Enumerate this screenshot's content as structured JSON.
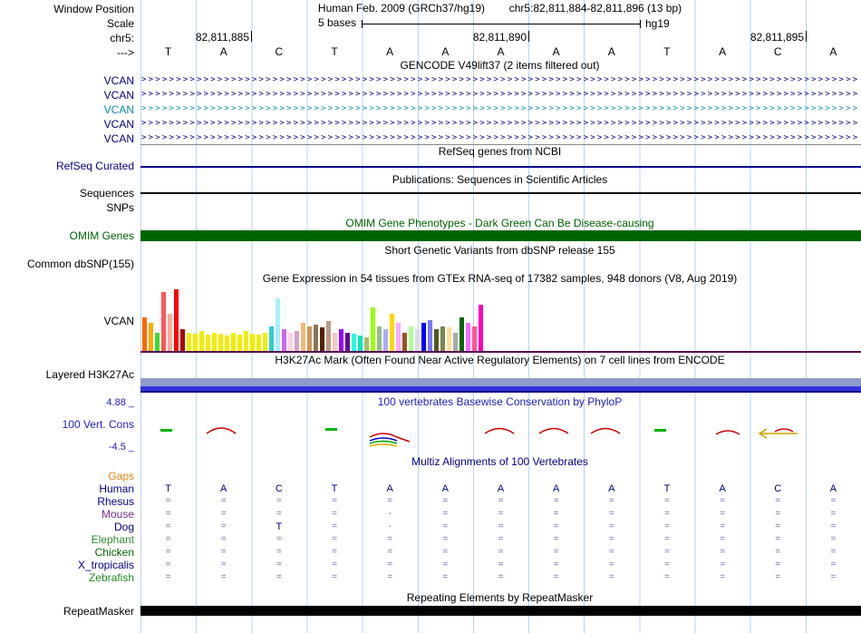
{
  "header": {
    "assembly": "Human Feb. 2009 (GRCh37/hg19)",
    "position": "chr5:82,811,884-82,811,896 (13 bp)"
  },
  "labels": {
    "window_position": "Window Position",
    "scale": "Scale",
    "chr": "chr5:",
    "strand": "--->"
  },
  "scale": {
    "text": "5 bases",
    "genome": "hg19"
  },
  "ruler": {
    "coords": [
      "82,811,885",
      "82,811,890",
      "82,811,895"
    ],
    "bases": [
      "T",
      "A",
      "C",
      "T",
      "A",
      "A",
      "A",
      "A",
      "A",
      "T",
      "A",
      "C",
      "A"
    ]
  },
  "tracks": {
    "gencode": {
      "title": "GENCODE V49lift37 (2 items filtered out)",
      "items": [
        {
          "label": "VCAN",
          "color": "#000080"
        },
        {
          "label": "VCAN",
          "color": "#000080"
        },
        {
          "label": "VCAN",
          "color": "#0E8CA8"
        },
        {
          "label": "VCAN",
          "color": "#000080"
        },
        {
          "label": "VCAN",
          "color": "#000080"
        }
      ]
    },
    "refseq": {
      "title": "RefSeq genes from NCBI",
      "label": "RefSeq Curated",
      "color": "#00008B"
    },
    "publications": {
      "title": "Publications: Sequences in Scientific Articles",
      "label": "Sequences"
    },
    "snps": {
      "label": "SNPs"
    },
    "omim": {
      "title": "OMIM Gene Phenotypes - Dark Green Can Be Disease-causing",
      "label": "OMIM Genes",
      "color": "#006400"
    },
    "dbsnp": {
      "title": "Short Genetic Variants from dbSNP release 155",
      "label": "Common dbSNP(155)"
    },
    "gtex": {
      "title": "Gene Expression in 54 tissues from GTEx RNA-seq of 17382 samples, 948 donors (V8, Aug 2019)",
      "label": "VCAN",
      "baseline_color": "#550A55",
      "bars": [
        {
          "color": "#FF6600",
          "h": 0.55
        },
        {
          "color": "#FFAA00",
          "h": 0.45
        },
        {
          "color": "#33DD33",
          "h": 0.3
        },
        {
          "color": "#FF5555",
          "h": 0.95
        },
        {
          "color": "#FFAA99",
          "h": 0.6
        },
        {
          "color": "#FF0000",
          "h": 1.0
        },
        {
          "color": "#AA0000",
          "h": 0.35
        },
        {
          "color": "#EEEE00",
          "h": 0.3
        },
        {
          "color": "#EEEE00",
          "h": 0.28
        },
        {
          "color": "#EEEE00",
          "h": 0.32
        },
        {
          "color": "#EEEE00",
          "h": 0.26
        },
        {
          "color": "#EEEE00",
          "h": 0.3
        },
        {
          "color": "#EEEE00",
          "h": 0.28
        },
        {
          "color": "#EEEE00",
          "h": 0.25
        },
        {
          "color": "#EEEE00",
          "h": 0.3
        },
        {
          "color": "#EEEE00",
          "h": 0.27
        },
        {
          "color": "#EEEE00",
          "h": 0.32
        },
        {
          "color": "#EEEE00",
          "h": 0.28
        },
        {
          "color": "#EEEE00",
          "h": 0.26
        },
        {
          "color": "#EEEE00",
          "h": 0.3
        },
        {
          "color": "#33CCCC",
          "h": 0.4
        },
        {
          "color": "#AAEEFF",
          "h": 0.85
        },
        {
          "color": "#CC66FF",
          "h": 0.35
        },
        {
          "color": "#FFD1DC",
          "h": 0.3
        },
        {
          "color": "#D1A3C4",
          "h": 0.32
        },
        {
          "color": "#EEBB77",
          "h": 0.45
        },
        {
          "color": "#CC9955",
          "h": 0.4
        },
        {
          "color": "#8B7355",
          "h": 0.42
        },
        {
          "color": "#552200",
          "h": 0.38
        },
        {
          "color": "#BB9988",
          "h": 0.48
        },
        {
          "color": "#F1C6C6",
          "h": 0.3
        },
        {
          "color": "#9900FF",
          "h": 0.35
        },
        {
          "color": "#660099",
          "h": 0.3
        },
        {
          "color": "#22FFDD",
          "h": 0.28
        },
        {
          "color": "#00E5C0",
          "h": 0.25
        },
        {
          "color": "#AABB66",
          "h": 0.22
        },
        {
          "color": "#99FF00",
          "h": 0.7
        },
        {
          "color": "#99BB88",
          "h": 0.4
        },
        {
          "color": "#AAAAFF",
          "h": 0.35
        },
        {
          "color": "#FFD700",
          "h": 0.6
        },
        {
          "color": "#FFAAFF",
          "h": 0.45
        },
        {
          "color": "#995522",
          "h": 0.3
        },
        {
          "color": "#AAFF99",
          "h": 0.4
        },
        {
          "color": "#DDDDDD",
          "h": 0.35
        },
        {
          "color": "#0000FF",
          "h": 0.45
        },
        {
          "color": "#7777FF",
          "h": 0.5
        },
        {
          "color": "#555522",
          "h": 0.35
        },
        {
          "color": "#778855",
          "h": 0.4
        },
        {
          "color": "#FFDD99",
          "h": 0.38
        },
        {
          "color": "#AAAAAA",
          "h": 0.3
        },
        {
          "color": "#006600",
          "h": 0.55
        },
        {
          "color": "#FF66FF",
          "h": 0.45
        },
        {
          "color": "#FF5599",
          "h": 0.4
        },
        {
          "color": "#FF00BB",
          "h": 0.75
        }
      ]
    },
    "h3k27ac": {
      "title": "H3K27Ac Mark (Often Found Near Active Regulatory Elements) on 7 cell lines from ENCODE",
      "label": "Layered H3K27Ac",
      "band_colors": [
        "#8E9CCB",
        "#2E34D8",
        "#10128F"
      ]
    },
    "phylop": {
      "title": "100 vertebrates Basewise Conservation by PhyloP",
      "label": "100 Vert. Cons",
      "max": "4.88 _",
      "min": "-4.5 _",
      "color": "#2020C8"
    },
    "multiz": {
      "title": "Multiz Alignments of 100 Vertebrates",
      "color": "#00008B",
      "rows": [
        {
          "name": "Gaps",
          "color": "#E8820C",
          "cells": [
            "",
            "",
            "",
            "",
            "",
            "",
            "",
            "",
            "",
            "",
            "",
            "",
            ""
          ]
        },
        {
          "name": "Human",
          "color": "#00008B",
          "cells": [
            "T",
            "A",
            "C",
            "T",
            "A",
            "A",
            "A",
            "A",
            "A",
            "T",
            "A",
            "C",
            "A"
          ]
        },
        {
          "name": "Rhesus",
          "color": "#00008B",
          "cells": [
            "=",
            "=",
            "=",
            "=",
            "=",
            "=",
            "=",
            "=",
            "=",
            "=",
            "=",
            "=",
            "="
          ]
        },
        {
          "name": "Mouse",
          "color": "#7A2E8E",
          "cells": [
            "=",
            "=",
            "=",
            "=",
            "-",
            "=",
            "=",
            "=",
            "=",
            "=",
            "=",
            "=",
            "="
          ]
        },
        {
          "name": "Dog",
          "color": "#00008B",
          "cells": [
            "=",
            "=",
            "T",
            "=",
            "-",
            "=",
            "=",
            "=",
            "=",
            "=",
            "=",
            "=",
            "="
          ]
        },
        {
          "name": "Elephant",
          "color": "#2E8B2E",
          "cells": [
            "=",
            "=",
            "=",
            "=",
            "=",
            "=",
            "=",
            "=",
            "=",
            "=",
            "=",
            "=",
            "="
          ]
        },
        {
          "name": "Chicken",
          "color": "#006400",
          "cells": [
            "=",
            "=",
            "=",
            "=",
            "=",
            "=",
            "=",
            "=",
            "=",
            "=",
            "=",
            "=",
            "="
          ]
        },
        {
          "name": "X_tropicalis",
          "color": "#00008B",
          "cells": [
            "=",
            "=",
            "=",
            "=",
            "=",
            "=",
            "=",
            "=",
            "=",
            "=",
            "=",
            "=",
            "="
          ]
        },
        {
          "name": "Zebrafish",
          "color": "#228B22",
          "cells": [
            "=",
            "=",
            "=",
            "=",
            "=",
            "=",
            "=",
            "=",
            "=",
            "=",
            "=",
            "=",
            "="
          ]
        }
      ]
    },
    "repeatmasker": {
      "title": "Repeating Elements by RepeatMasker",
      "label": "RepeatMasker",
      "color": "#000000"
    }
  }
}
